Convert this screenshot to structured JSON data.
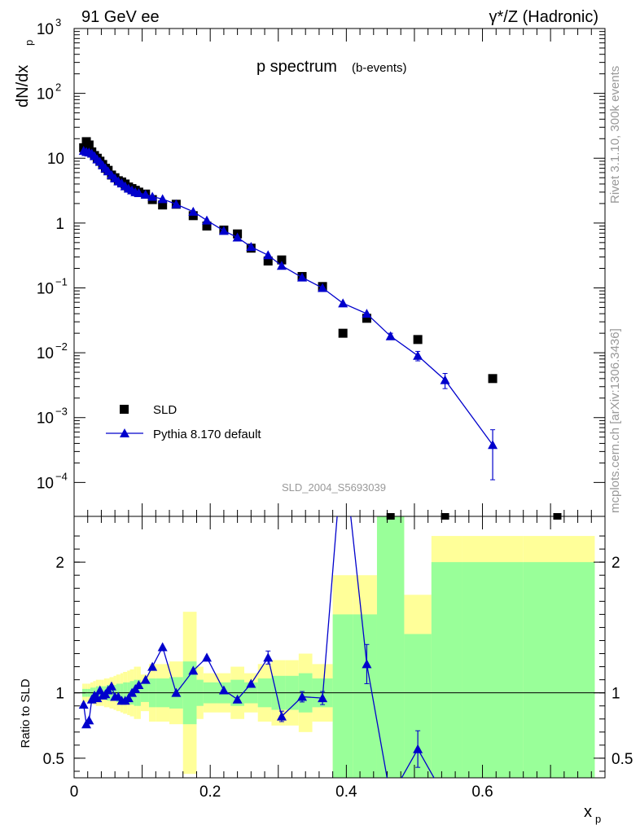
{
  "header": {
    "left_label": "91 GeV ee",
    "right_label": "γ*/Z (Hadronic)"
  },
  "side_labels": {
    "version": "Rivet 3.1.10,  300k events",
    "source": "mcplots.cern.ch [arXiv:1306.3436]"
  },
  "chart_data": [
    {
      "type": "scatter",
      "title": "p spectrum",
      "subtitle": "(b-events)",
      "ylabel": "dN/dx",
      "ylabel_sub": "p",
      "yscale": "log",
      "ylim": [
        3e-05,
        1000
      ],
      "xlim": [
        0,
        0.78
      ],
      "analysis_id": "SLD_2004_S5693039",
      "legend_position": "bottom-left",
      "y_ticks": [
        {
          "value": 1000,
          "base": "10",
          "exp": "3"
        },
        {
          "value": 100,
          "base": "10",
          "exp": "2"
        },
        {
          "value": 10,
          "base": "10",
          "exp": ""
        },
        {
          "value": 1,
          "base": "1",
          "exp": ""
        },
        {
          "value": 0.1,
          "base": "10",
          "exp": "−1"
        },
        {
          "value": 0.01,
          "base": "10",
          "exp": "−2"
        },
        {
          "value": 0.001,
          "base": "10",
          "exp": "−3"
        },
        {
          "value": 0.0001,
          "base": "10",
          "exp": "−4"
        }
      ],
      "series": [
        {
          "name": "SLD",
          "color": "#000000",
          "marker": "square",
          "x": [
            0.014,
            0.018,
            0.022,
            0.026,
            0.03,
            0.034,
            0.038,
            0.042,
            0.046,
            0.05,
            0.055,
            0.06,
            0.065,
            0.07,
            0.075,
            0.08,
            0.085,
            0.09,
            0.095,
            0.105,
            0.115,
            0.13,
            0.15,
            0.175,
            0.195,
            0.22,
            0.24,
            0.26,
            0.285,
            0.305,
            0.335,
            0.365,
            0.395,
            0.43,
            0.465,
            0.505,
            0.545,
            0.615,
            0.71
          ],
          "y": [
            14.5,
            18,
            16,
            12.5,
            11,
            10,
            9,
            8,
            7,
            6.5,
            5.5,
            5,
            4.5,
            4.3,
            4,
            3.6,
            3.4,
            3.2,
            3.0,
            2.8,
            2.3,
            1.9,
            1.95,
            1.3,
            0.9,
            0.78,
            0.68,
            0.41,
            0.26,
            0.27,
            0.15,
            0.105,
            0.02,
            0.034,
            2.5e-05,
            0.016,
            2.5e-05,
            0.004,
            2.5e-05
          ]
        },
        {
          "name": "Pythia 8.170 default",
          "color": "#0000cc",
          "marker": "triangle",
          "x": [
            0.014,
            0.018,
            0.022,
            0.026,
            0.03,
            0.034,
            0.038,
            0.042,
            0.046,
            0.05,
            0.055,
            0.06,
            0.065,
            0.07,
            0.075,
            0.08,
            0.085,
            0.09,
            0.095,
            0.105,
            0.115,
            0.13,
            0.15,
            0.175,
            0.195,
            0.22,
            0.24,
            0.26,
            0.285,
            0.305,
            0.335,
            0.365,
            0.395,
            0.43,
            0.465,
            0.505,
            0.545,
            0.615
          ],
          "y": [
            13,
            12.5,
            12.3,
            11.8,
            10.8,
            9.6,
            8.8,
            7.8,
            7.0,
            6.3,
            5.5,
            4.9,
            4.4,
            4.1,
            3.7,
            3.4,
            3.2,
            3.0,
            2.9,
            2.75,
            2.55,
            2.35,
            1.95,
            1.5,
            1.1,
            0.76,
            0.6,
            0.43,
            0.32,
            0.22,
            0.145,
            0.1,
            0.058,
            0.04,
            0.018,
            0.009,
            0.0038,
            0.00038
          ],
          "yerr_low": [
            0,
            0,
            0,
            0,
            0,
            0,
            0,
            0,
            0,
            0,
            0,
            0,
            0,
            0,
            0,
            0,
            0,
            0,
            0,
            0,
            0,
            0,
            0,
            0,
            0,
            0,
            0,
            0,
            0,
            0,
            0,
            0,
            0,
            0,
            0.002,
            0.0015,
            0.001,
            0.00027
          ],
          "yerr_high": [
            0,
            0,
            0,
            0,
            0,
            0,
            0,
            0,
            0,
            0,
            0,
            0,
            0,
            0,
            0,
            0,
            0,
            0,
            0,
            0,
            0,
            0,
            0,
            0,
            0,
            0,
            0,
            0,
            0,
            0,
            0,
            0,
            0,
            0,
            0.002,
            0.0015,
            0.001,
            0.00027
          ]
        }
      ]
    },
    {
      "type": "line",
      "ylabel": "Ratio to SLD",
      "xlabel": "x",
      "xlabel_sub": "p",
      "xlim": [
        0,
        0.78
      ],
      "ylim": [
        0.35,
        2.35
      ],
      "y_ticks": [
        0.5,
        1,
        2
      ],
      "x_ticks": [
        "0",
        "0.2",
        "0.4",
        "0.6"
      ],
      "x_tick_values": [
        0,
        0.2,
        0.4,
        0.6
      ],
      "band_edges": [
        0.012,
        0.016,
        0.02,
        0.024,
        0.028,
        0.032,
        0.036,
        0.04,
        0.044,
        0.048,
        0.052,
        0.058,
        0.062,
        0.068,
        0.072,
        0.078,
        0.082,
        0.088,
        0.092,
        0.098,
        0.11,
        0.12,
        0.14,
        0.16,
        0.18,
        0.19,
        0.21,
        0.23,
        0.25,
        0.27,
        0.29,
        0.31,
        0.33,
        0.35,
        0.38,
        0.41,
        0.445,
        0.485,
        0.525,
        0.57,
        0.66,
        0.765
      ],
      "yellow_band": {
        "color": "#ffff99",
        "low": [
          0.93,
          0.93,
          0.93,
          0.92,
          0.91,
          0.9,
          0.9,
          0.9,
          0.89,
          0.89,
          0.88,
          0.87,
          0.86,
          0.85,
          0.84,
          0.83,
          0.82,
          0.8,
          0.8,
          0.86,
          0.78,
          0.78,
          0.76,
          0.38,
          0.8,
          0.85,
          0.85,
          0.8,
          0.85,
          0.78,
          0.75,
          0.75,
          0.7,
          0.78,
          0.1,
          0.1,
          0.1,
          0.1,
          0.1,
          0.1,
          0.1
        ],
        "high": [
          1.07,
          1.07,
          1.07,
          1.08,
          1.09,
          1.1,
          1.1,
          1.1,
          1.11,
          1.11,
          1.12,
          1.13,
          1.14,
          1.15,
          1.16,
          1.17,
          1.18,
          1.2,
          1.2,
          1.14,
          1.22,
          1.22,
          1.24,
          1.62,
          1.2,
          1.15,
          1.15,
          1.2,
          1.15,
          1.22,
          1.25,
          1.25,
          1.3,
          1.22,
          1.9,
          1.9,
          3,
          1.75,
          2.2,
          2.2,
          2.2
        ]
      },
      "green_band": {
        "color": "#99ff99",
        "low": [
          0.97,
          0.97,
          0.97,
          0.96,
          0.96,
          0.95,
          0.95,
          0.95,
          0.95,
          0.94,
          0.94,
          0.94,
          0.93,
          0.93,
          0.92,
          0.92,
          0.91,
          0.9,
          0.9,
          0.93,
          0.89,
          0.89,
          0.88,
          0.76,
          0.9,
          0.92,
          0.92,
          0.9,
          0.92,
          0.89,
          0.87,
          0.87,
          0.85,
          0.89,
          0.1,
          0.1,
          0.1,
          0.1,
          0.1,
          0.1,
          0.1
        ],
        "high": [
          1.03,
          1.03,
          1.03,
          1.04,
          1.04,
          1.05,
          1.05,
          1.05,
          1.05,
          1.06,
          1.06,
          1.06,
          1.07,
          1.07,
          1.08,
          1.08,
          1.09,
          1.1,
          1.1,
          1.07,
          1.11,
          1.11,
          1.12,
          1.24,
          1.1,
          1.08,
          1.08,
          1.1,
          1.08,
          1.11,
          1.13,
          1.13,
          1.15,
          1.11,
          1.6,
          1.6,
          3,
          1.45,
          2.0,
          2.0,
          2.0
        ]
      },
      "series": [
        {
          "name": "Pythia 8.170 default",
          "color": "#0000cc",
          "marker": "triangle",
          "x": [
            0.014,
            0.018,
            0.022,
            0.026,
            0.03,
            0.034,
            0.038,
            0.042,
            0.046,
            0.05,
            0.055,
            0.06,
            0.065,
            0.07,
            0.075,
            0.08,
            0.085,
            0.09,
            0.095,
            0.105,
            0.115,
            0.13,
            0.15,
            0.175,
            0.195,
            0.22,
            0.24,
            0.26,
            0.285,
            0.305,
            0.335,
            0.365,
            0.395,
            0.43,
            0.465,
            0.505,
            0.545
          ],
          "y": [
            0.91,
            0.76,
            0.79,
            0.95,
            0.98,
            0.96,
            1.02,
            0.98,
            0.99,
            1.02,
            1.05,
            0.97,
            0.97,
            0.94,
            0.94,
            0.96,
            1.0,
            1.03,
            1.06,
            1.1,
            1.2,
            1.35,
            1.0,
            1.17,
            1.27,
            1.02,
            0.95,
            1.07,
            1.27,
            0.82,
            0.97,
            0.96,
            2.9,
            1.22,
            0.2,
            0.57,
            0.2
          ],
          "yerr": [
            0,
            0,
            0,
            0,
            0,
            0,
            0,
            0,
            0,
            0,
            0,
            0,
            0,
            0,
            0,
            0,
            0,
            0,
            0,
            0,
            0,
            0,
            0,
            0,
            0,
            0,
            0,
            0,
            0.05,
            0.04,
            0.04,
            0.05,
            0.1,
            0.15,
            0,
            0.14,
            0
          ]
        }
      ]
    }
  ]
}
